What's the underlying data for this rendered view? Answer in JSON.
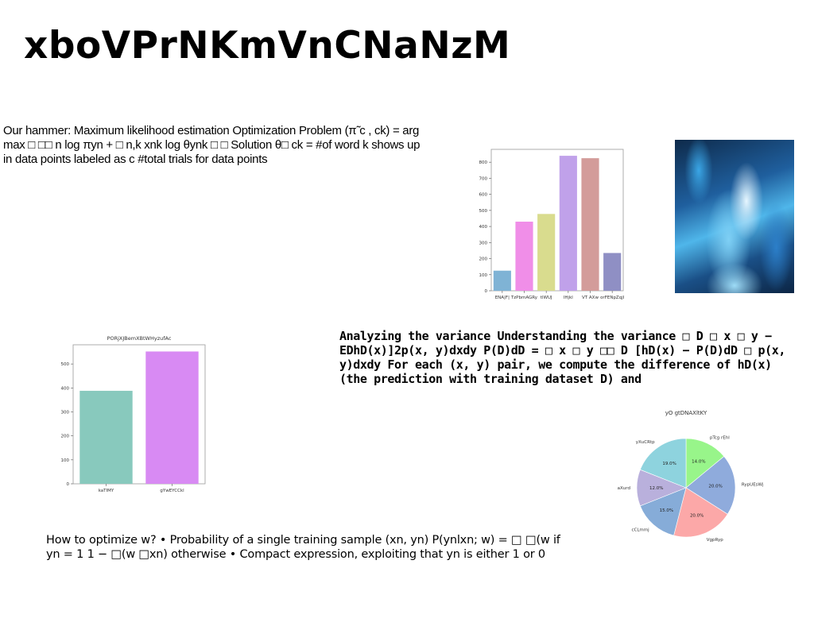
{
  "title": "xboVPrNKmVnCNaNzM",
  "text_blocks": {
    "hammer": "Our hammer: Maximum likelihood estimation Optimization Problem (π̃ c , ck) = arg max □ □□ n log πyn + □ n,k xnk log θynk □ □ Solution θ□ ck = #of word k shows up in data points labeled as c #total trials for data points",
    "variance": "Analyzing the variance Understanding the variance □ D □ x □ y − EDhD(x)]2p(x, y)dxdy P(D)dD = □ x □ y □□ D [hD(x) − P(D)dD □ p(x, y)dxdy For each (x, y) pair, we compute the difference of hD(x) (the prediction with training dataset D) and",
    "optimize": "How to optimize w? • Probability of a single training sample (xn, yn) P(ynlxn; w) = □ □(w if yn = 1 1 − □(w □xn) otherwise • Compact expression, exploiting that yn is either 1 or 0"
  },
  "chart_data": [
    {
      "type": "bar",
      "title": "",
      "categories": [
        "ENA|F|",
        "TzPbmAGRy",
        "tlWUJ",
        "lHjkl",
        "VT AXw",
        "orFENpZqjl"
      ],
      "values": [
        125,
        430,
        478,
        840,
        825,
        235
      ],
      "colors": [
        "#7fb3d5",
        "#f08ee8",
        "#d9dc8e",
        "#c0a1ea",
        "#d39c9a",
        "#8f8fc4"
      ],
      "ylim": [
        0,
        880
      ],
      "yticks": [
        0,
        100,
        200,
        300,
        400,
        500,
        600,
        700,
        800
      ],
      "grid": false
    },
    {
      "type": "bar",
      "title": "PORjXJBemXBtWHyzufAc",
      "categories": [
        "kaTIMY",
        "gYwEYCCkl"
      ],
      "values": [
        388,
        552
      ],
      "colors": [
        "#88c9bd",
        "#d88af3"
      ],
      "ylim": [
        0,
        580
      ],
      "yticks": [
        0,
        100,
        200,
        300,
        400,
        500
      ],
      "grid": false
    },
    {
      "type": "pie",
      "title": "yO gtDNAXltKY",
      "labels": [
        "pTcg rEhl",
        "RypUEsWj",
        "VgpRyp",
        "cCLmmj",
        "aXurd",
        "yXuCRtp"
      ],
      "values": [
        14.0,
        20.0,
        20.0,
        15.0,
        12.0,
        19.0
      ],
      "pct_labels": [
        "14.0%",
        "20.0%",
        "20.0%",
        "15.0%",
        "12.0%",
        "19.0%"
      ],
      "colors": [
        "#98f58a",
        "#8fabdc",
        "#fca8a8",
        "#86acd8",
        "#b9b0dc",
        "#8ed3de"
      ]
    }
  ]
}
